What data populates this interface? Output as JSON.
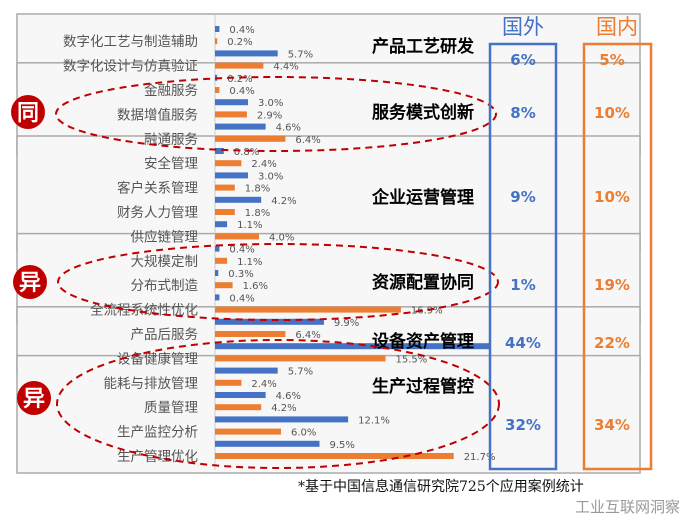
{
  "colors": {
    "foreign": "#4472C4",
    "domestic": "#ED7D31",
    "accent": "#C00000"
  },
  "headers": {
    "foreign": "国外",
    "domestic": "国内"
  },
  "badges": {
    "same": "同",
    "diff": "异"
  },
  "footnote": "*基于中国信息通信研究院725个应用案例统计",
  "watermark": "工业互联网洞察",
  "chart_data": {
    "type": "bar",
    "orientation": "horizontal",
    "value_unit": "%",
    "series_colors": {
      "foreign": "#4472C4",
      "domestic": "#ED7D31"
    },
    "groups": [
      {
        "name": "产品工艺研发",
        "foreign_total": "6%",
        "domestic_total": "5%",
        "items": [
          {
            "label": "数字化工艺与制造辅助",
            "foreign": 0.4,
            "domestic": 0.2
          },
          {
            "label": "数字化设计与仿真验证",
            "foreign": 5.7,
            "domestic": 4.4
          }
        ]
      },
      {
        "name": "服务模式创新",
        "foreign_total": "8%",
        "domestic_total": "10%",
        "items": [
          {
            "label": "金融服务",
            "foreign": 0.2,
            "domestic": 0.4
          },
          {
            "label": "数据增值服务",
            "foreign": 3.0,
            "domestic": 2.9
          },
          {
            "label": "融通服务",
            "foreign": 4.6,
            "domestic": 6.4
          }
        ]
      },
      {
        "name": "企业运营管理",
        "foreign_total": "9%",
        "domestic_total": "10%",
        "items": [
          {
            "label": "安全管理",
            "foreign": 0.8,
            "domestic": 2.4
          },
          {
            "label": "客户关系管理",
            "foreign": 3.0,
            "domestic": 1.8
          },
          {
            "label": "财务人力管理",
            "foreign": 4.2,
            "domestic": 1.8
          },
          {
            "label": "供应链管理",
            "foreign": 1.1,
            "domestic": 4.0
          }
        ]
      },
      {
        "name": "资源配置协同",
        "foreign_total": "1%",
        "domestic_total": "19%",
        "items": [
          {
            "label": "大规模定制",
            "foreign": 0.4,
            "domestic": 1.1
          },
          {
            "label": "分布式制造",
            "foreign": 0.3,
            "domestic": 1.6
          },
          {
            "label": "全流程系统性优化",
            "foreign": 0.4,
            "domestic": 16.9
          }
        ]
      },
      {
        "name": "设备资产管理",
        "foreign_total": "44%",
        "domestic_total": "22%",
        "items": [
          {
            "label": "产品后服务",
            "foreign": 9.9,
            "domestic": 6.4
          },
          {
            "label": "设备健康管理",
            "foreign": 34.1,
            "domestic": 15.5,
            "foreign_label_hidden": true
          }
        ]
      },
      {
        "name": "生产过程管控",
        "foreign_total": "32%",
        "domestic_total": "34%",
        "items": [
          {
            "label": "能耗与排放管理",
            "foreign": 5.7,
            "domestic": 2.4
          },
          {
            "label": "质量管理",
            "foreign": 4.6,
            "domestic": 4.2
          },
          {
            "label": "生产监控分析",
            "foreign": 12.1,
            "domestic": 6.0
          },
          {
            "label": "生产管理优化",
            "foreign": 9.5,
            "domestic": 21.7
          }
        ]
      }
    ]
  }
}
